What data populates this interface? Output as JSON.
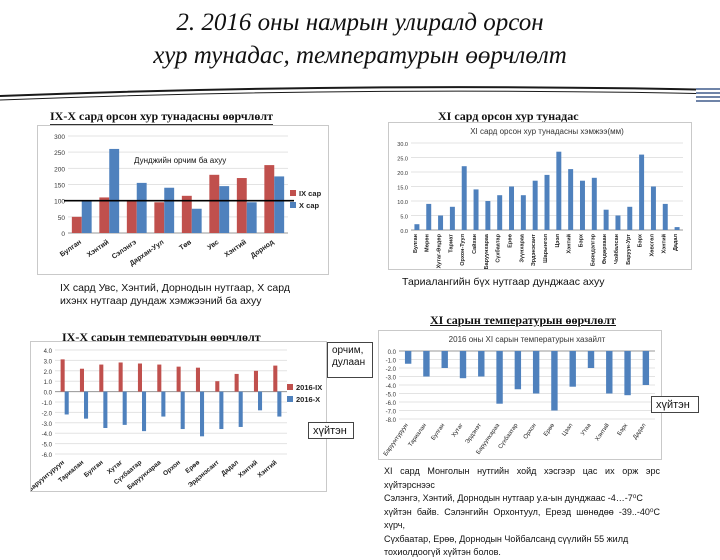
{
  "slide": {
    "title_line1": "2. 2016 оны намрын улиралд орсон",
    "title_line2": "хур тунадас, температурын өөрчлөлт"
  },
  "sections": {
    "top_left": "IX-X сард орсон хур тунадасны өөрчлөлт",
    "top_right": "XI сард орсон хур тунадас",
    "bottom_left": "IX-X сарын температурын өөрчлөлт",
    "bottom_right": "XI сарын температурын өөрчлөлт"
  },
  "captions": {
    "precip_ix_x_line1": "IX сард Увс, Хэнтий, Дорнодын нутгаар, X сард",
    "precip_ix_x_line2": "ихэнх нутгаар дундаж хэмжээний ба ахуу",
    "precip_xi": "Тариалангийн бүх нутгаар дунджаас ахуу",
    "normal_line": "Дунджийн орчим ба ахуу"
  },
  "callouts": {
    "normal_line1": "орчим,",
    "normal_line2": "дулаан",
    "cold_left": "хүйтэн",
    "cold_right": "хүйтэн"
  },
  "note": {
    "line1": "XI сард Монголын нутгийн хойд хэсгээр цас их орж эрс хүйтэрснээс",
    "line2": "Сэлэнгэ, Хэнтий, Дорнодын нутгаар у.а-ын дунджаас -4…-7⁰С",
    "line3": "хүйтэн байв. Сэлэнгийн Орхонтуул, Ереэд шөнөдөө -39..-40⁰С хүрч,",
    "line4": "Сүхбаатар, Ерөө, Дорнодын Чойбалсанд сүүлийн 55 жилд",
    "line5": "тохиолдоогүй хүйтэн болов."
  },
  "colors": {
    "red_series": "#c0504d",
    "blue_series": "#4f81bd",
    "title_rule": "#1a1a1a"
  },
  "chart_data": [
    {
      "type": "bar",
      "categories": [
        "Булган",
        "Хэнтий",
        "Сэлэнгэ",
        "Дархан-Уул",
        "Төв",
        "Увс",
        "Хэнтий",
        "Дорнод"
      ],
      "series": [
        {
          "name": "IX сар",
          "values": [
            50,
            110,
            100,
            95,
            115,
            180,
            170,
            210
          ]
        },
        {
          "name": "X сар",
          "values": [
            100,
            260,
            155,
            140,
            75,
            145,
            95,
            175
          ]
        }
      ],
      "ylim": [
        0,
        300
      ],
      "yticks": [
        0,
        50,
        100,
        150,
        200,
        250,
        300
      ],
      "reference_line": 100,
      "legend": "right"
    },
    {
      "type": "bar",
      "title": "XI сард орсон хур тунадасны хэмжээ(мм)",
      "categories": [
        "Булган",
        "Мөрөн",
        "Хутаг-Өндөр",
        "Тариат",
        "Орхон-Туул",
        "Сайхан",
        "Баруунхараа",
        "Сүхбаатар",
        "Ерөө",
        "Зүүнхараа",
        "Эрдэнэсант",
        "Шарынгол",
        "Цээл",
        "Хэнтий",
        "Бэрх",
        "Баяндэлгэр",
        "Өндөрхаан",
        "Чойбалсан",
        "Баруун-Урт",
        "Бэрх",
        "Хөвсгөл",
        "Хэнтий",
        "Дадал"
      ],
      "values": [
        2,
        9,
        5,
        8,
        22,
        14,
        10,
        12,
        15,
        12,
        17,
        19,
        27,
        21,
        17,
        18,
        7,
        5,
        8,
        26,
        15,
        9,
        1
      ],
      "ylim": [
        0,
        30
      ],
      "yticks": [
        0,
        5,
        10,
        15,
        20,
        25,
        30
      ]
    },
    {
      "type": "bar",
      "categories": [
        "Баруунтуруун",
        "Тариалан",
        "Булган",
        "Хутаг",
        "Сүхбаатар",
        "Баруунхараа",
        "Орхон",
        "Ерөө",
        "Эрдэнэсант",
        "Дадал",
        "Хэнтий",
        "Хэнтий"
      ],
      "series": [
        {
          "name": "2016-IX",
          "values": [
            3.1,
            2.2,
            2.6,
            2.8,
            2.7,
            2.6,
            2.4,
            2.3,
            1.0,
            1.7,
            2.0,
            2.5
          ]
        },
        {
          "name": "2016-X",
          "values": [
            -2.2,
            -2.6,
            -3.5,
            -3.2,
            -3.8,
            -2.4,
            -3.6,
            -4.3,
            -3.6,
            -3.4,
            -1.8,
            -2.4
          ]
        }
      ],
      "ylim": [
        -6,
        4
      ],
      "yticks": [
        -6,
        -5,
        -4,
        -3,
        -2,
        -1,
        0,
        1,
        2,
        3,
        4
      ],
      "legend": "right"
    },
    {
      "type": "bar",
      "title": "2016 оны XI сарын температурын хазайлт",
      "categories": [
        "Баруунтуруун",
        "Тариалан",
        "Булган",
        "Хутаг",
        "Эрдэнэт",
        "Баруунхараа",
        "Сүхбаатар",
        "Орхон",
        "Ерөө",
        "Цээл",
        "Утаа",
        "Хэнтий",
        "Бэрх",
        "Дадал"
      ],
      "values": [
        -1.5,
        -3.0,
        -2.0,
        -3.2,
        -3.0,
        -6.2,
        -4.5,
        -5.0,
        -7.0,
        -4.2,
        -2.0,
        -5.0,
        -5.2,
        -4.0
      ],
      "ylim": [
        -8,
        0
      ],
      "yticks": [
        0,
        -1,
        -2,
        -3,
        -4,
        -5,
        -6,
        -7,
        -8
      ]
    }
  ]
}
